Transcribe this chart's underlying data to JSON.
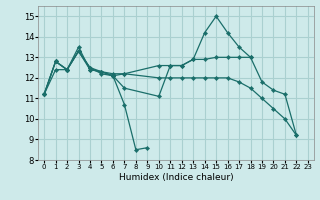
{
  "xlabel": "Humidex (Indice chaleur)",
  "xlim": [
    -0.5,
    23.5
  ],
  "ylim": [
    8,
    15.5
  ],
  "yticks": [
    8,
    9,
    10,
    11,
    12,
    13,
    14,
    15
  ],
  "xticks": [
    0,
    1,
    2,
    3,
    4,
    5,
    6,
    7,
    8,
    9,
    10,
    11,
    12,
    13,
    14,
    15,
    16,
    17,
    18,
    19,
    20,
    21,
    22,
    23
  ],
  "bg_color": "#ceeaea",
  "grid_color": "#aad0d0",
  "line_color": "#1a6e6a",
  "series": [
    {
      "x": [
        0,
        1,
        2,
        3,
        4,
        5,
        6,
        7,
        8,
        9
      ],
      "y": [
        11.2,
        12.8,
        12.4,
        13.5,
        12.4,
        12.3,
        12.1,
        10.7,
        8.5,
        8.6
      ]
    },
    {
      "comment": "long series with peaks at x=14 (14.2), x=15 (15.0), x=16 (14.2), ends x=22 at 9.2",
      "x": [
        0,
        1,
        2,
        3,
        4,
        5,
        6,
        7,
        10,
        11,
        12,
        13,
        14,
        15,
        16,
        17,
        18,
        19,
        20,
        21,
        22
      ],
      "y": [
        11.2,
        12.8,
        12.4,
        13.3,
        12.4,
        12.3,
        12.1,
        11.5,
        11.1,
        12.6,
        12.6,
        12.9,
        14.2,
        15.0,
        14.2,
        13.5,
        13.0,
        11.8,
        11.4,
        11.2,
        9.2
      ]
    },
    {
      "x": [
        0,
        1,
        2,
        3,
        4,
        5,
        6,
        7,
        10,
        11,
        12,
        13,
        14,
        15,
        16,
        17,
        18
      ],
      "y": [
        11.2,
        12.8,
        12.4,
        13.3,
        12.5,
        12.3,
        12.2,
        12.2,
        12.6,
        12.6,
        12.6,
        12.9,
        12.9,
        13.0,
        13.0,
        13.0,
        13.0
      ]
    },
    {
      "x": [
        0,
        1,
        2,
        3,
        4,
        5,
        6,
        7,
        10,
        11,
        12,
        13,
        14,
        15,
        16,
        17,
        18,
        19,
        20,
        21,
        22
      ],
      "y": [
        11.2,
        12.4,
        12.4,
        13.3,
        12.5,
        12.2,
        12.1,
        12.2,
        12.0,
        12.0,
        12.0,
        12.0,
        12.0,
        12.0,
        12.0,
        11.8,
        11.5,
        11.0,
        10.5,
        10.0,
        9.2
      ]
    }
  ]
}
